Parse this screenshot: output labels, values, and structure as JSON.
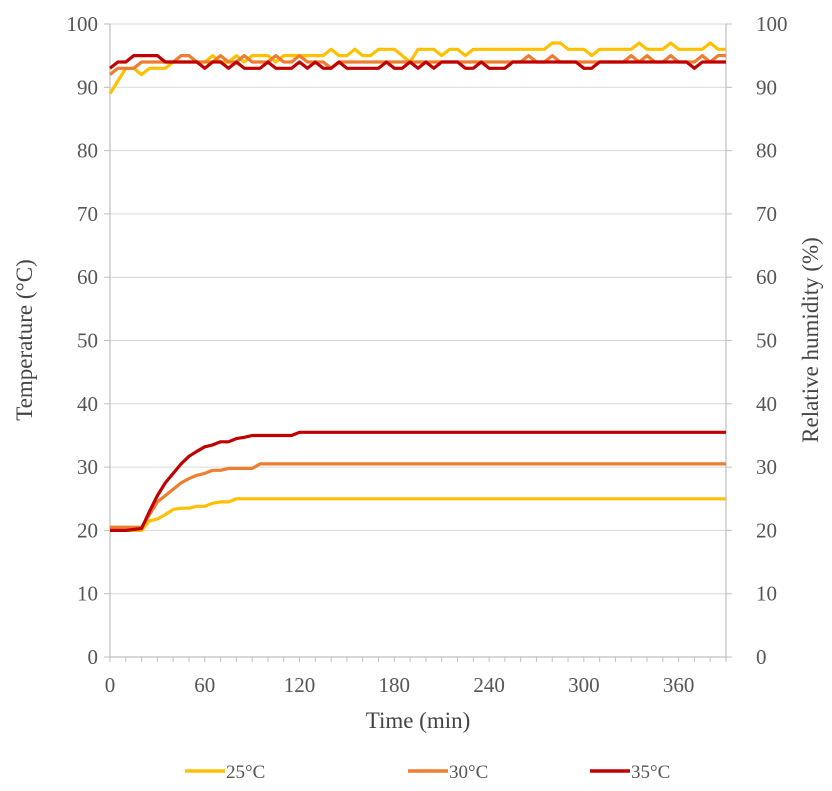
{
  "chart_data": {
    "type": "line",
    "xlabel": "Time (min)",
    "ylabel_left": "Temperature (°C)",
    "ylabel_right": "Relative humidity (%)",
    "xlim": [
      0,
      390
    ],
    "ylim_left": [
      0,
      100
    ],
    "ylim_right": [
      0,
      100
    ],
    "xticks": [
      0,
      60,
      120,
      180,
      240,
      300,
      360
    ],
    "yticks": [
      0,
      10,
      20,
      30,
      40,
      50,
      60,
      70,
      80,
      90,
      100
    ],
    "grid": true,
    "legend_position": "bottom",
    "series": [
      {
        "name": "25°C",
        "kind": "temperature",
        "axis": "left",
        "color": "#FFC000",
        "points": [
          [
            0,
            20
          ],
          [
            10,
            20
          ],
          [
            20,
            20
          ],
          [
            25,
            21.5
          ],
          [
            30,
            21.8
          ],
          [
            35,
            22.5
          ],
          [
            40,
            23.3
          ],
          [
            45,
            23.5
          ],
          [
            50,
            23.5
          ],
          [
            55,
            23.8
          ],
          [
            60,
            23.8
          ],
          [
            65,
            24.3
          ],
          [
            70,
            24.5
          ],
          [
            75,
            24.5
          ],
          [
            80,
            25
          ],
          [
            100,
            25
          ],
          [
            120,
            25
          ],
          [
            200,
            25
          ],
          [
            300,
            25
          ],
          [
            390,
            25
          ]
        ]
      },
      {
        "name": "30°C",
        "kind": "temperature",
        "axis": "left",
        "color": "#ED7D31",
        "points": [
          [
            0,
            20.5
          ],
          [
            10,
            20.5
          ],
          [
            20,
            20.5
          ],
          [
            25,
            22.5
          ],
          [
            30,
            24.5
          ],
          [
            35,
            25.5
          ],
          [
            40,
            26.5
          ],
          [
            45,
            27.5
          ],
          [
            50,
            28.2
          ],
          [
            55,
            28.7
          ],
          [
            60,
            29
          ],
          [
            65,
            29.5
          ],
          [
            70,
            29.5
          ],
          [
            75,
            29.8
          ],
          [
            80,
            29.8
          ],
          [
            90,
            29.8
          ],
          [
            95,
            30.5
          ],
          [
            120,
            30.5
          ],
          [
            200,
            30.5
          ],
          [
            300,
            30.5
          ],
          [
            390,
            30.5
          ]
        ]
      },
      {
        "name": "35°C",
        "kind": "temperature",
        "axis": "left",
        "color": "#C00000",
        "points": [
          [
            0,
            20
          ],
          [
            10,
            20
          ],
          [
            20,
            20.3
          ],
          [
            25,
            23
          ],
          [
            30,
            25.5
          ],
          [
            35,
            27.5
          ],
          [
            40,
            29
          ],
          [
            45,
            30.5
          ],
          [
            50,
            31.7
          ],
          [
            55,
            32.5
          ],
          [
            60,
            33.2
          ],
          [
            65,
            33.5
          ],
          [
            70,
            34
          ],
          [
            75,
            34
          ],
          [
            80,
            34.5
          ],
          [
            85,
            34.7
          ],
          [
            90,
            35
          ],
          [
            110,
            35
          ],
          [
            115,
            35
          ],
          [
            120,
            35.5
          ],
          [
            200,
            35.5
          ],
          [
            300,
            35.5
          ],
          [
            390,
            35.5
          ]
        ]
      },
      {
        "name": "25°C",
        "kind": "humidity",
        "axis": "right",
        "color": "#FFC000",
        "points": [
          [
            0,
            89
          ],
          [
            5,
            91
          ],
          [
            10,
            93
          ],
          [
            15,
            93
          ],
          [
            20,
            92
          ],
          [
            25,
            93
          ],
          [
            30,
            93
          ],
          [
            35,
            93
          ],
          [
            40,
            94
          ],
          [
            45,
            94
          ],
          [
            50,
            94
          ],
          [
            55,
            94
          ],
          [
            60,
            94
          ],
          [
            65,
            95
          ],
          [
            70,
            94
          ],
          [
            75,
            94
          ],
          [
            80,
            95
          ],
          [
            85,
            94
          ],
          [
            90,
            95
          ],
          [
            95,
            95
          ],
          [
            100,
            95
          ],
          [
            105,
            94
          ],
          [
            110,
            95
          ],
          [
            115,
            95
          ],
          [
            120,
            95
          ],
          [
            125,
            95
          ],
          [
            130,
            95
          ],
          [
            135,
            95
          ],
          [
            140,
            96
          ],
          [
            145,
            95
          ],
          [
            150,
            95
          ],
          [
            155,
            96
          ],
          [
            160,
            95
          ],
          [
            165,
            95
          ],
          [
            170,
            96
          ],
          [
            175,
            96
          ],
          [
            180,
            96
          ],
          [
            185,
            95
          ],
          [
            190,
            94
          ],
          [
            195,
            96
          ],
          [
            200,
            96
          ],
          [
            205,
            96
          ],
          [
            210,
            95
          ],
          [
            215,
            96
          ],
          [
            220,
            96
          ],
          [
            225,
            95
          ],
          [
            230,
            96
          ],
          [
            235,
            96
          ],
          [
            240,
            96
          ],
          [
            245,
            96
          ],
          [
            250,
            96
          ],
          [
            255,
            96
          ],
          [
            260,
            96
          ],
          [
            265,
            96
          ],
          [
            270,
            96
          ],
          [
            275,
            96
          ],
          [
            280,
            97
          ],
          [
            285,
            97
          ],
          [
            290,
            96
          ],
          [
            295,
            96
          ],
          [
            300,
            96
          ],
          [
            305,
            95
          ],
          [
            310,
            96
          ],
          [
            315,
            96
          ],
          [
            320,
            96
          ],
          [
            325,
            96
          ],
          [
            330,
            96
          ],
          [
            335,
            97
          ],
          [
            340,
            96
          ],
          [
            345,
            96
          ],
          [
            350,
            96
          ],
          [
            355,
            97
          ],
          [
            360,
            96
          ],
          [
            365,
            96
          ],
          [
            370,
            96
          ],
          [
            375,
            96
          ],
          [
            380,
            97
          ],
          [
            385,
            96
          ],
          [
            390,
            96
          ]
        ]
      },
      {
        "name": "30°C",
        "kind": "humidity",
        "axis": "right",
        "color": "#ED7D31",
        "points": [
          [
            0,
            92
          ],
          [
            5,
            93
          ],
          [
            10,
            93
          ],
          [
            15,
            93
          ],
          [
            20,
            94
          ],
          [
            25,
            94
          ],
          [
            30,
            94
          ],
          [
            35,
            94
          ],
          [
            40,
            94
          ],
          [
            45,
            95
          ],
          [
            50,
            95
          ],
          [
            55,
            94
          ],
          [
            60,
            94
          ],
          [
            65,
            94
          ],
          [
            70,
            95
          ],
          [
            75,
            94
          ],
          [
            80,
            94
          ],
          [
            85,
            95
          ],
          [
            90,
            94
          ],
          [
            95,
            94
          ],
          [
            100,
            94
          ],
          [
            105,
            95
          ],
          [
            110,
            94
          ],
          [
            115,
            94
          ],
          [
            120,
            95
          ],
          [
            125,
            94
          ],
          [
            130,
            94
          ],
          [
            135,
            94
          ],
          [
            140,
            93
          ],
          [
            145,
            94
          ],
          [
            150,
            94
          ],
          [
            155,
            94
          ],
          [
            160,
            94
          ],
          [
            165,
            94
          ],
          [
            170,
            94
          ],
          [
            175,
            94
          ],
          [
            180,
            94
          ],
          [
            185,
            94
          ],
          [
            190,
            94
          ],
          [
            195,
            94
          ],
          [
            200,
            94
          ],
          [
            205,
            94
          ],
          [
            210,
            94
          ],
          [
            215,
            94
          ],
          [
            220,
            94
          ],
          [
            225,
            94
          ],
          [
            230,
            94
          ],
          [
            235,
            94
          ],
          [
            240,
            94
          ],
          [
            245,
            94
          ],
          [
            250,
            94
          ],
          [
            255,
            94
          ],
          [
            260,
            94
          ],
          [
            265,
            95
          ],
          [
            270,
            94
          ],
          [
            275,
            94
          ],
          [
            280,
            95
          ],
          [
            285,
            94
          ],
          [
            290,
            94
          ],
          [
            295,
            94
          ],
          [
            300,
            94
          ],
          [
            305,
            94
          ],
          [
            310,
            94
          ],
          [
            315,
            94
          ],
          [
            320,
            94
          ],
          [
            325,
            94
          ],
          [
            330,
            95
          ],
          [
            335,
            94
          ],
          [
            340,
            95
          ],
          [
            345,
            94
          ],
          [
            350,
            94
          ],
          [
            355,
            95
          ],
          [
            360,
            94
          ],
          [
            365,
            94
          ],
          [
            370,
            94
          ],
          [
            375,
            95
          ],
          [
            380,
            94
          ],
          [
            385,
            95
          ],
          [
            390,
            95
          ]
        ]
      },
      {
        "name": "35°C",
        "kind": "humidity",
        "axis": "right",
        "color": "#C00000",
        "points": [
          [
            0,
            93
          ],
          [
            5,
            94
          ],
          [
            10,
            94
          ],
          [
            15,
            95
          ],
          [
            20,
            95
          ],
          [
            25,
            95
          ],
          [
            30,
            95
          ],
          [
            35,
            94
          ],
          [
            40,
            94
          ],
          [
            45,
            94
          ],
          [
            50,
            94
          ],
          [
            55,
            94
          ],
          [
            60,
            93
          ],
          [
            65,
            94
          ],
          [
            70,
            94
          ],
          [
            75,
            93
          ],
          [
            80,
            94
          ],
          [
            85,
            93
          ],
          [
            90,
            93
          ],
          [
            95,
            93
          ],
          [
            100,
            94
          ],
          [
            105,
            93
          ],
          [
            110,
            93
          ],
          [
            115,
            93
          ],
          [
            120,
            94
          ],
          [
            125,
            93
          ],
          [
            130,
            94
          ],
          [
            135,
            93
          ],
          [
            140,
            93
          ],
          [
            145,
            94
          ],
          [
            150,
            93
          ],
          [
            155,
            93
          ],
          [
            160,
            93
          ],
          [
            165,
            93
          ],
          [
            170,
            93
          ],
          [
            175,
            94
          ],
          [
            180,
            93
          ],
          [
            185,
            93
          ],
          [
            190,
            94
          ],
          [
            195,
            93
          ],
          [
            200,
            94
          ],
          [
            205,
            93
          ],
          [
            210,
            94
          ],
          [
            215,
            94
          ],
          [
            220,
            94
          ],
          [
            225,
            93
          ],
          [
            230,
            93
          ],
          [
            235,
            94
          ],
          [
            240,
            93
          ],
          [
            245,
            93
          ],
          [
            250,
            93
          ],
          [
            255,
            94
          ],
          [
            260,
            94
          ],
          [
            265,
            94
          ],
          [
            270,
            94
          ],
          [
            275,
            94
          ],
          [
            280,
            94
          ],
          [
            285,
            94
          ],
          [
            290,
            94
          ],
          [
            295,
            94
          ],
          [
            300,
            93
          ],
          [
            305,
            93
          ],
          [
            310,
            94
          ],
          [
            315,
            94
          ],
          [
            320,
            94
          ],
          [
            325,
            94
          ],
          [
            330,
            94
          ],
          [
            335,
            94
          ],
          [
            340,
            94
          ],
          [
            345,
            94
          ],
          [
            350,
            94
          ],
          [
            355,
            94
          ],
          [
            360,
            94
          ],
          [
            365,
            94
          ],
          [
            370,
            93
          ],
          [
            375,
            94
          ],
          [
            380,
            94
          ],
          [
            385,
            94
          ],
          [
            390,
            94
          ]
        ]
      }
    ],
    "legend": [
      {
        "label": "25°C",
        "color": "#FFC000"
      },
      {
        "label": "30°C",
        "color": "#ED7D31"
      },
      {
        "label": "35°C",
        "color": "#C00000"
      }
    ]
  }
}
